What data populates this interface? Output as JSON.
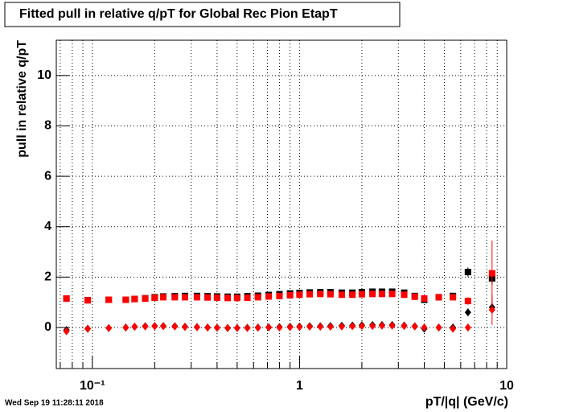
{
  "chart_data": {
    "type": "scatter",
    "title": "Fitted pull in relative q/pT for Global Rec Pion EtapT",
    "x_label": "pT/|q| (GeV/c)",
    "y_label": "pull in relative q/pT",
    "timestamp": "Wed Sep 19 11:28:11 2018",
    "log_x": true,
    "grid": true,
    "xlim": [
      0.067,
      10
    ],
    "ylim": [
      -1.63,
      11.4
    ],
    "xticks": [
      {
        "value": 0.1,
        "label": "10⁻¹"
      },
      1,
      10
    ],
    "xminorticks": [
      0.07,
      0.08,
      0.09,
      0.2,
      0.3,
      0.4,
      0.5,
      0.6,
      0.7,
      0.8,
      0.9,
      2,
      3,
      4,
      5,
      6,
      7,
      8,
      9
    ],
    "yticks": [
      0,
      2,
      4,
      6,
      8,
      10
    ],
    "x": [
      0.075,
      0.095,
      0.12,
      0.145,
      0.16,
      0.18,
      0.2,
      0.22,
      0.25,
      0.28,
      0.32,
      0.36,
      0.4,
      0.45,
      0.5,
      0.56,
      0.63,
      0.71,
      0.8,
      0.9,
      1.0,
      1.12,
      1.26,
      1.41,
      1.6,
      1.8,
      2.0,
      2.25,
      2.5,
      2.8,
      3.2,
      3.6,
      4.0,
      4.7,
      5.5,
      6.5,
      8.5
    ],
    "series": [
      {
        "name": "black-squares",
        "marker": "square",
        "color": "#000000",
        "values": [
          1.15,
          1.08,
          1.1,
          1.1,
          1.13,
          1.16,
          1.2,
          1.23,
          1.24,
          1.25,
          1.25,
          1.24,
          1.23,
          1.22,
          1.22,
          1.24,
          1.26,
          1.29,
          1.32,
          1.35,
          1.37,
          1.39,
          1.4,
          1.4,
          1.38,
          1.38,
          1.4,
          1.42,
          1.42,
          1.42,
          1.38,
          1.25,
          1.1,
          1.2,
          1.25,
          2.2,
          1.95
        ],
        "errors": [
          0.03,
          0.03,
          0.03,
          0.03,
          0.03,
          0.03,
          0.03,
          0.03,
          0.03,
          0.03,
          0.03,
          0.03,
          0.03,
          0.03,
          0.03,
          0.03,
          0.03,
          0.03,
          0.03,
          0.03,
          0.03,
          0.03,
          0.03,
          0.03,
          0.03,
          0.03,
          0.03,
          0.03,
          0.03,
          0.03,
          0.04,
          0.05,
          0.06,
          0.08,
          0.1,
          0.18,
          0.25
        ]
      },
      {
        "name": "red-squares",
        "marker": "square",
        "color": "#ff0000",
        "values": [
          1.15,
          1.08,
          1.1,
          1.1,
          1.13,
          1.15,
          1.18,
          1.2,
          1.2,
          1.2,
          1.2,
          1.19,
          1.18,
          1.17,
          1.17,
          1.18,
          1.2,
          1.23,
          1.25,
          1.28,
          1.3,
          1.32,
          1.33,
          1.32,
          1.3,
          1.3,
          1.32,
          1.33,
          1.33,
          1.33,
          1.3,
          1.22,
          1.15,
          1.2,
          1.2,
          1.05,
          2.15
        ],
        "errors": [
          0.03,
          0.03,
          0.03,
          0.03,
          0.03,
          0.03,
          0.03,
          0.03,
          0.03,
          0.03,
          0.03,
          0.03,
          0.03,
          0.03,
          0.03,
          0.03,
          0.03,
          0.03,
          0.03,
          0.03,
          0.03,
          0.03,
          0.03,
          0.03,
          0.03,
          0.03,
          0.03,
          0.03,
          0.03,
          0.03,
          0.04,
          0.05,
          0.06,
          0.08,
          0.1,
          0.15,
          1.3
        ]
      },
      {
        "name": "black-diamonds",
        "marker": "diamond",
        "color": "#000000",
        "values": [
          -0.1,
          -0.05,
          -0.02,
          0,
          0.03,
          0.05,
          0.06,
          0.06,
          0.05,
          0.03,
          0.02,
          0,
          -0.01,
          -0.02,
          -0.02,
          -0.01,
          0,
          0.01,
          0.02,
          0.03,
          0.04,
          0.05,
          0.05,
          0.06,
          0.07,
          0.08,
          0.09,
          0.1,
          0.1,
          0.1,
          0.08,
          0.05,
          -0.05,
          0.0,
          0.0,
          0.6,
          0.8
        ],
        "errors": [
          0.03,
          0.03,
          0.03,
          0.03,
          0.03,
          0.03,
          0.03,
          0.03,
          0.03,
          0.03,
          0.03,
          0.03,
          0.03,
          0.03,
          0.03,
          0.03,
          0.03,
          0.03,
          0.03,
          0.03,
          0.03,
          0.03,
          0.03,
          0.03,
          0.03,
          0.03,
          0.03,
          0.03,
          0.03,
          0.03,
          0.04,
          0.05,
          0.06,
          0.08,
          0.1,
          0.15,
          0.2
        ]
      },
      {
        "name": "red-diamonds",
        "marker": "diamond",
        "color": "#ff0000",
        "values": [
          -0.15,
          -0.05,
          -0.02,
          0,
          0.03,
          0.04,
          0.05,
          0.05,
          0.04,
          0.02,
          0.01,
          0,
          -0.01,
          -0.02,
          -0.02,
          -0.02,
          -0.01,
          0,
          0,
          0.01,
          0.02,
          0.03,
          0.03,
          0.03,
          0.04,
          0.05,
          0.06,
          0.06,
          0.07,
          0.07,
          0.06,
          0.04,
          0.0,
          0.0,
          -0.05,
          0.0,
          0.7
        ],
        "errors": [
          0.03,
          0.03,
          0.03,
          0.03,
          0.03,
          0.03,
          0.03,
          0.03,
          0.03,
          0.03,
          0.03,
          0.03,
          0.03,
          0.03,
          0.03,
          0.03,
          0.03,
          0.03,
          0.03,
          0.03,
          0.03,
          0.03,
          0.03,
          0.03,
          0.03,
          0.03,
          0.03,
          0.03,
          0.03,
          0.03,
          0.04,
          0.05,
          0.06,
          0.08,
          0.1,
          0.15,
          0.6
        ]
      }
    ]
  }
}
